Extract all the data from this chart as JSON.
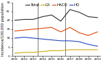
{
  "years": [
    2001,
    2002,
    2003,
    2004,
    2005,
    2006,
    2007,
    2008,
    2009,
    2010
  ],
  "total": [
    20.0,
    20.5,
    20.5,
    22.0,
    23.0,
    19.5,
    26.0,
    24.5,
    22.0,
    21.5
  ],
  "ca": [
    1.5,
    2.0,
    2.0,
    2.5,
    3.0,
    3.0,
    3.5,
    3.5,
    3.5,
    3.5
  ],
  "haco": [
    14.0,
    14.5,
    15.0,
    15.5,
    16.0,
    13.5,
    16.0,
    13.0,
    11.5,
    13.5
  ],
  "ho": [
    10.0,
    10.5,
    10.0,
    9.5,
    9.0,
    8.5,
    8.5,
    8.0,
    6.5,
    5.5
  ],
  "total_color": "#2a2a2a",
  "ca_color": "#ccaa00",
  "haco_color": "#dd4400",
  "ho_color": "#2244bb",
  "vline_years": [
    2003.5,
    2006.5
  ],
  "vline_color": "#777777",
  "ylabel": "Incidence/100,000 population",
  "ylim": [
    0,
    30
  ],
  "yticks": [
    0,
    5,
    10,
    15,
    20,
    25,
    30
  ],
  "xlim": [
    2001,
    2010
  ],
  "xticks": [
    2001,
    2002,
    2003,
    2004,
    2005,
    2006,
    2007,
    2008,
    2009,
    2010
  ],
  "legend_labels": [
    "Total",
    "CA",
    "HACO",
    "HO"
  ],
  "background_color": "#ffffff",
  "ylabel_fontsize": 3.8,
  "tick_fontsize": 3.2,
  "legend_fontsize": 4.0,
  "linewidth": 0.8,
  "vline_linewidth": 0.7
}
